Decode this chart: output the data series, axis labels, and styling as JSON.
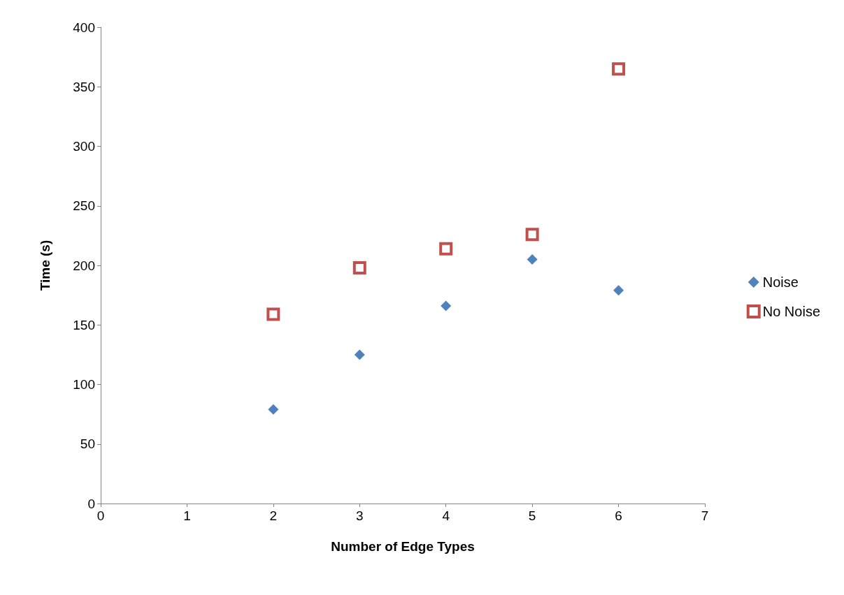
{
  "chart_data": {
    "type": "scatter",
    "xlabel": "Number of Edge Types",
    "ylabel": "Time (s)",
    "xlim": [
      0,
      7
    ],
    "xticks": [
      0,
      1,
      2,
      3,
      4,
      5,
      6,
      7
    ],
    "ylim": [
      0,
      400
    ],
    "yticks": [
      0,
      50,
      100,
      150,
      200,
      250,
      300,
      350,
      400
    ],
    "grid": false,
    "legend": "right",
    "x": [
      2,
      3,
      4,
      5,
      6
    ],
    "series": [
      {
        "name": "Noise",
        "color": "#4f81bd",
        "marker": "diamond",
        "values": [
          79,
          125,
          166,
          205,
          179
        ]
      },
      {
        "name": "No Noise",
        "color": "#c0504d",
        "marker": "square",
        "values": [
          159,
          198,
          214,
          226,
          365
        ]
      }
    ]
  }
}
